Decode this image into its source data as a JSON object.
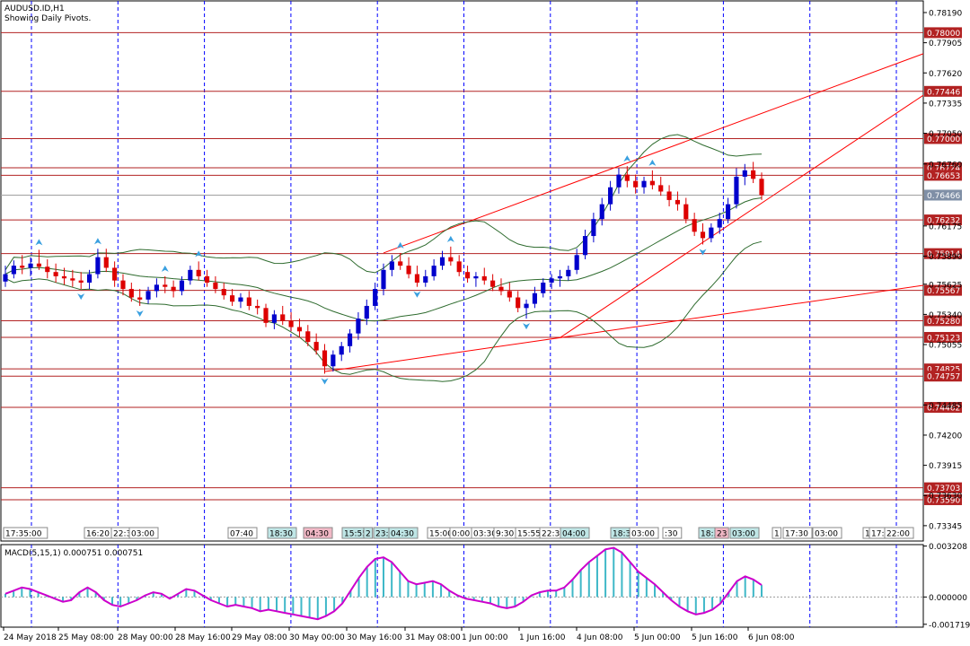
{
  "chart_data": {
    "type": "candlestick",
    "title": "AUDUSD.ID,H1",
    "subtitle": "Showing Daily Pivots.",
    "price_axis": {
      "range": [
        0.732,
        0.783
      ],
      "ticks": [
        "0.78190",
        "0.77905",
        "0.77620",
        "0.77335",
        "0.77050",
        "0.76760",
        "0.76175",
        "0.75890",
        "0.75625",
        "0.75340",
        "0.75055",
        "0.74485",
        "0.74200",
        "0.73915",
        "0.73630",
        "0.73345"
      ]
    },
    "current_price": {
      "label": "0.76466",
      "value": 0.76466
    },
    "pivot_lines": [
      {
        "label": "0.78000",
        "value": 0.78
      },
      {
        "label": "0.77446",
        "value": 0.77446
      },
      {
        "label": "0.77000",
        "value": 0.77
      },
      {
        "label": "0.76724",
        "value": 0.76724
      },
      {
        "label": "0.76653",
        "value": 0.76653
      },
      {
        "label": "0.76232",
        "value": 0.76232
      },
      {
        "label": "0.75914",
        "value": 0.75914
      },
      {
        "label": "0.75567",
        "value": 0.75567
      },
      {
        "label": "0.75280",
        "value": 0.7528
      },
      {
        "label": "0.75123",
        "value": 0.75123
      },
      {
        "label": "0.74825",
        "value": 0.74825
      },
      {
        "label": "0.74757",
        "value": 0.74757
      },
      {
        "label": "0.74462",
        "value": 0.74462
      },
      {
        "label": "0.73703",
        "value": 0.73703
      },
      {
        "label": "0.73590",
        "value": 0.7359
      }
    ],
    "time_axis": {
      "labels": [
        "24 May 2018",
        "25 May 08:00",
        "28 May 00:00",
        "28 May 16:00",
        "29 May 08:00",
        "30 May 00:00",
        "30 May 16:00",
        "31 May 08:00",
        "1 Jun 00:00",
        "1 Jun 16:00",
        "4 Jun 08:00",
        "5 Jun 00:00",
        "5 Jun 16:00",
        "6 Jun 08:00"
      ]
    },
    "session_labels": [
      {
        "text": "17:35:00",
        "highlight": "none"
      },
      {
        "text": "16:20",
        "highlight": "none"
      },
      {
        "text": "22:3",
        "highlight": "none"
      },
      {
        "text": "03:00",
        "highlight": "none"
      },
      {
        "text": "07:40",
        "highlight": "none"
      },
      {
        "text": "18:30",
        "highlight": "teal"
      },
      {
        "text": "04:30",
        "highlight": "pink"
      },
      {
        "text": "15:55",
        "highlight": "teal"
      },
      {
        "text": "2",
        "highlight": "teal"
      },
      {
        "text": "23:3",
        "highlight": "teal"
      },
      {
        "text": "04:30",
        "highlight": "teal"
      },
      {
        "text": "15:00",
        "highlight": "none"
      },
      {
        "text": "0:00",
        "highlight": "none"
      },
      {
        "text": "03:30",
        "highlight": "none"
      },
      {
        "text": "9:30",
        "highlight": "none"
      },
      {
        "text": "15:55",
        "highlight": "none"
      },
      {
        "text": "22:3",
        "highlight": "none"
      },
      {
        "text": "04:00",
        "highlight": "teal"
      },
      {
        "text": "18:30",
        "highlight": "teal"
      },
      {
        "text": "03:00",
        "highlight": "none"
      },
      {
        "text": ":30",
        "highlight": "none"
      },
      {
        "text": "18:3",
        "highlight": "teal"
      },
      {
        "text": "23",
        "highlight": "pink"
      },
      {
        "text": "03:00",
        "highlight": "teal"
      },
      {
        "text": "1",
        "highlight": "none"
      },
      {
        "text": "17:30",
        "highlight": "none"
      },
      {
        "text": "03:00",
        "highlight": "none"
      },
      {
        "text": "1",
        "highlight": "none"
      },
      {
        "text": "17:3",
        "highlight": "none"
      },
      {
        "text": "22:00",
        "highlight": "none"
      }
    ],
    "candles": [
      [
        0.7565,
        0.758,
        0.756,
        0.7572
      ],
      [
        0.7572,
        0.7585,
        0.7568,
        0.758
      ],
      [
        0.758,
        0.759,
        0.7572,
        0.7578
      ],
      [
        0.7578,
        0.7588,
        0.757,
        0.7582
      ],
      [
        0.7582,
        0.7595,
        0.7576,
        0.7579
      ],
      [
        0.7579,
        0.7586,
        0.7568,
        0.7574
      ],
      [
        0.7574,
        0.7582,
        0.7564,
        0.757
      ],
      [
        0.757,
        0.7578,
        0.7562,
        0.7568
      ],
      [
        0.7568,
        0.7576,
        0.756,
        0.7566
      ],
      [
        0.7566,
        0.7574,
        0.7558,
        0.7564
      ],
      [
        0.7564,
        0.7576,
        0.7558,
        0.7572
      ],
      [
        0.7572,
        0.7596,
        0.7568,
        0.7588
      ],
      [
        0.7588,
        0.7596,
        0.7574,
        0.7578
      ],
      [
        0.7578,
        0.7584,
        0.756,
        0.7566
      ],
      [
        0.7566,
        0.7572,
        0.7552,
        0.7558
      ],
      [
        0.7558,
        0.7564,
        0.7546,
        0.755
      ],
      [
        0.755,
        0.7558,
        0.7542,
        0.7548
      ],
      [
        0.7548,
        0.756,
        0.7544,
        0.7556
      ],
      [
        0.7556,
        0.7568,
        0.755,
        0.7562
      ],
      [
        0.7562,
        0.757,
        0.7554,
        0.756
      ],
      [
        0.756,
        0.7566,
        0.755,
        0.7556
      ],
      [
        0.7556,
        0.757,
        0.7552,
        0.7566
      ],
      [
        0.7566,
        0.758,
        0.7562,
        0.7576
      ],
      [
        0.7576,
        0.7584,
        0.7566,
        0.757
      ],
      [
        0.757,
        0.7576,
        0.756,
        0.7564
      ],
      [
        0.7564,
        0.757,
        0.7554,
        0.7558
      ],
      [
        0.7558,
        0.7564,
        0.7548,
        0.7552
      ],
      [
        0.7552,
        0.7558,
        0.7542,
        0.7546
      ],
      [
        0.7546,
        0.7554,
        0.754,
        0.755
      ],
      [
        0.755,
        0.7556,
        0.7538,
        0.7542
      ],
      [
        0.7542,
        0.7548,
        0.7534,
        0.754
      ],
      [
        0.754,
        0.7544,
        0.7522,
        0.7526
      ],
      [
        0.7526,
        0.7538,
        0.752,
        0.7534
      ],
      [
        0.7534,
        0.7542,
        0.7524,
        0.7528
      ],
      [
        0.7528,
        0.7536,
        0.7518,
        0.7522
      ],
      [
        0.7522,
        0.753,
        0.7512,
        0.7518
      ],
      [
        0.7518,
        0.7524,
        0.7504,
        0.7508
      ],
      [
        0.7508,
        0.7516,
        0.7496,
        0.75
      ],
      [
        0.75,
        0.7506,
        0.7478,
        0.7485
      ],
      [
        0.7485,
        0.75,
        0.748,
        0.7496
      ],
      [
        0.7496,
        0.7508,
        0.749,
        0.7504
      ],
      [
        0.7504,
        0.752,
        0.7498,
        0.7516
      ],
      [
        0.7516,
        0.7536,
        0.751,
        0.753
      ],
      [
        0.753,
        0.7548,
        0.7524,
        0.7542
      ],
      [
        0.7542,
        0.7564,
        0.7538,
        0.7558
      ],
      [
        0.7558,
        0.7582,
        0.7552,
        0.7576
      ],
      [
        0.7576,
        0.759,
        0.757,
        0.7584
      ],
      [
        0.7584,
        0.7592,
        0.7576,
        0.758
      ],
      [
        0.758,
        0.7588,
        0.7568,
        0.7572
      ],
      [
        0.7572,
        0.758,
        0.756,
        0.7564
      ],
      [
        0.7564,
        0.7576,
        0.756,
        0.757
      ],
      [
        0.757,
        0.7586,
        0.7566,
        0.758
      ],
      [
        0.758,
        0.7594,
        0.7576,
        0.7588
      ],
      [
        0.7588,
        0.7598,
        0.758,
        0.7584
      ],
      [
        0.7584,
        0.759,
        0.757,
        0.7574
      ],
      [
        0.7574,
        0.758,
        0.7564,
        0.7568
      ],
      [
        0.7568,
        0.7574,
        0.756,
        0.757
      ],
      [
        0.757,
        0.7578,
        0.7562,
        0.7566
      ],
      [
        0.7566,
        0.7572,
        0.7556,
        0.756
      ],
      [
        0.756,
        0.7568,
        0.7552,
        0.7556
      ],
      [
        0.7556,
        0.7564,
        0.7546,
        0.755
      ],
      [
        0.755,
        0.7556,
        0.7536,
        0.754
      ],
      [
        0.754,
        0.7548,
        0.753,
        0.7544
      ],
      [
        0.7544,
        0.756,
        0.754,
        0.7554
      ],
      [
        0.7554,
        0.7568,
        0.755,
        0.7564
      ],
      [
        0.7564,
        0.7572,
        0.7558,
        0.7568
      ],
      [
        0.7568,
        0.7576,
        0.756,
        0.757
      ],
      [
        0.757,
        0.758,
        0.7566,
        0.7576
      ],
      [
        0.7576,
        0.7596,
        0.7572,
        0.759
      ],
      [
        0.759,
        0.7614,
        0.7586,
        0.7608
      ],
      [
        0.7608,
        0.763,
        0.7602,
        0.7624
      ],
      [
        0.7624,
        0.7644,
        0.7618,
        0.7638
      ],
      [
        0.7638,
        0.766,
        0.7632,
        0.7654
      ],
      [
        0.7654,
        0.7672,
        0.7648,
        0.7666
      ],
      [
        0.7666,
        0.7674,
        0.7654,
        0.766
      ],
      [
        0.766,
        0.7666,
        0.7648,
        0.7654
      ],
      [
        0.7654,
        0.7664,
        0.7648,
        0.766
      ],
      [
        0.766,
        0.767,
        0.7652,
        0.7656
      ],
      [
        0.7656,
        0.7664,
        0.7646,
        0.765
      ],
      [
        0.765,
        0.7656,
        0.7636,
        0.7642
      ],
      [
        0.7642,
        0.765,
        0.7632,
        0.7638
      ],
      [
        0.7638,
        0.7644,
        0.762,
        0.7624
      ],
      [
        0.7624,
        0.763,
        0.7608,
        0.7612
      ],
      [
        0.7612,
        0.762,
        0.76,
        0.7606
      ],
      [
        0.7606,
        0.762,
        0.7602,
        0.7616
      ],
      [
        0.7616,
        0.763,
        0.761,
        0.7624
      ],
      [
        0.7624,
        0.7644,
        0.762,
        0.7638
      ],
      [
        0.7638,
        0.7672,
        0.7634,
        0.7664
      ],
      [
        0.7664,
        0.7676,
        0.7656,
        0.767
      ],
      [
        0.767,
        0.7678,
        0.7658,
        0.7662
      ],
      [
        0.7662,
        0.7668,
        0.7642,
        0.76466
      ]
    ],
    "macd": {
      "label": "MACD(5,15,1) 0.000751 0.000751",
      "axis_ticks": [
        "0.003208",
        "0.000000",
        "-0.001719"
      ],
      "range": [
        -0.0019,
        0.0033
      ],
      "values": [
        0.0002,
        0.0004,
        0.0006,
        0.0005,
        0.0003,
        0.0001,
        -0.0001,
        -0.0003,
        -0.0002,
        0.0003,
        0.0006,
        0.0003,
        -0.0002,
        -0.0005,
        -0.0006,
        -0.0004,
        -0.0002,
        0.0001,
        0.0003,
        0.0002,
        -0.0001,
        0.0002,
        0.0005,
        0.0004,
        0.0001,
        -0.0002,
        -0.0004,
        -0.0006,
        -0.0005,
        -0.0006,
        -0.0007,
        -0.0009,
        -0.0008,
        -0.0009,
        -0.001,
        -0.0011,
        -0.0012,
        -0.0013,
        -0.0014,
        -0.0012,
        -0.0009,
        -0.0004,
        0.0004,
        0.0012,
        0.0019,
        0.0024,
        0.0025,
        0.0022,
        0.0016,
        0.001,
        0.0008,
        0.0009,
        0.001,
        0.0008,
        0.0004,
        0.0001,
        -0.0001,
        -0.0002,
        -0.0003,
        -0.0004,
        -0.0006,
        -0.0007,
        -0.0006,
        -0.0003,
        0.0001,
        0.0003,
        0.0004,
        0.0004,
        0.0006,
        0.0011,
        0.0017,
        0.0022,
        0.0026,
        0.003,
        0.0031,
        0.0028,
        0.0022,
        0.0016,
        0.0012,
        0.0008,
        0.0003,
        -0.0002,
        -0.0006,
        -0.0009,
        -0.0011,
        -0.001,
        -0.0008,
        -0.0004,
        0.0003,
        0.001,
        0.0013,
        0.0011,
        0.00075
      ]
    }
  }
}
